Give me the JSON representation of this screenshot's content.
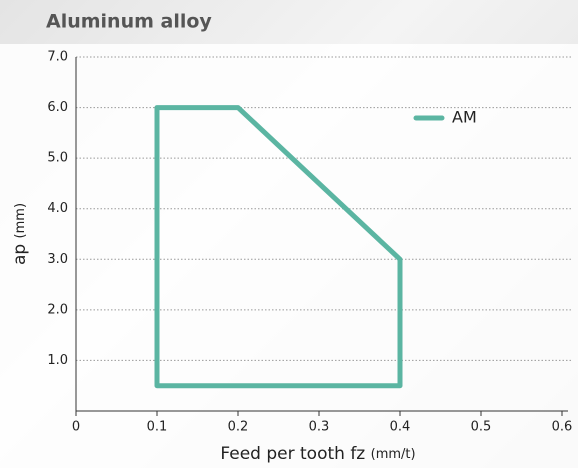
{
  "chart_data": {
    "type": "line",
    "title": "Aluminum alloy",
    "xlabel": "Feed per tooth fz",
    "xlabel_unit": "(mm/t)",
    "ylabel": "ap",
    "ylabel_unit": "(mm)",
    "x": [
      0.1,
      0.2,
      0.4,
      0.4,
      0.1,
      0.1
    ],
    "series": [
      {
        "name": "AM",
        "color": "#5bb5a2",
        "values": [
          6,
          6,
          3,
          0.5,
          0.5,
          6
        ]
      }
    ],
    "xlim": [
      0,
      0.6
    ],
    "xticks": [
      0,
      0.1,
      0.2,
      0.3,
      0.4,
      0.5,
      0.6
    ],
    "ylim": [
      0,
      7
    ],
    "yticks": [
      {
        "value": 1,
        "label": "1.0"
      },
      {
        "value": 2,
        "label": "2.0"
      },
      {
        "value": 3,
        "label": "3.0"
      },
      {
        "value": 4,
        "label": "4.0"
      },
      {
        "value": 5,
        "label": "5.0"
      },
      {
        "value": 6,
        "label": "6.0"
      },
      {
        "value": 7,
        "label": "7.0"
      }
    ],
    "grid": true,
    "legend": "upper right"
  }
}
